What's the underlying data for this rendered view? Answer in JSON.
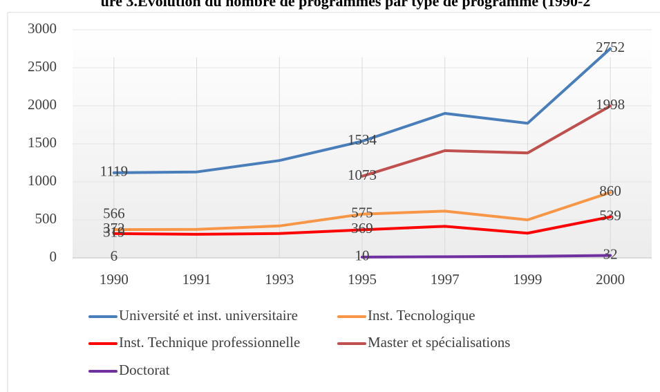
{
  "chart_data": {
    "type": "line",
    "title": "ure 3.Evolution du nombre de programmes par type de programme (1990-2",
    "categories": [
      "1990",
      "1991",
      "1993",
      "1995",
      "1997",
      "1999",
      "2000"
    ],
    "ylim": [
      0,
      3000
    ],
    "yticks": [
      0,
      500,
      1000,
      1500,
      2000,
      2500,
      3000
    ],
    "grid": true,
    "series": [
      {
        "name": "Université et inst. universitaire",
        "color": "#4a7ebb",
        "values": [
          1119,
          1130,
          1280,
          1534,
          1900,
          1770,
          2752
        ],
        "value_labels": [
          "1119",
          null,
          null,
          "1534",
          null,
          null,
          "2752"
        ]
      },
      {
        "name": "Inst. Tecnologique",
        "color": "#f79646",
        "values": [
          372,
          375,
          420,
          575,
          615,
          500,
          860
        ],
        "value_labels": [
          "372",
          null,
          null,
          "575",
          null,
          null,
          "860"
        ]
      },
      {
        "name": "Inst. Technique professionnelle",
        "color": "#ff0000",
        "values": [
          319,
          310,
          320,
          369,
          415,
          325,
          539
        ],
        "value_labels": [
          "319",
          null,
          null,
          "369",
          null,
          null,
          "539"
        ]
      },
      {
        "name": "Master et spécialisations",
        "color": "#c0504d",
        "values": [
          566,
          null,
          null,
          1073,
          1410,
          1380,
          1998
        ],
        "value_labels": [
          "566",
          null,
          null,
          "1073",
          null,
          null,
          "1998"
        ]
      },
      {
        "name": "Doctorat",
        "color": "#7030a0",
        "values": [
          6,
          null,
          null,
          10,
          15,
          20,
          32
        ],
        "value_labels": [
          "6",
          null,
          null,
          "10",
          null,
          null,
          "32"
        ]
      }
    ]
  }
}
